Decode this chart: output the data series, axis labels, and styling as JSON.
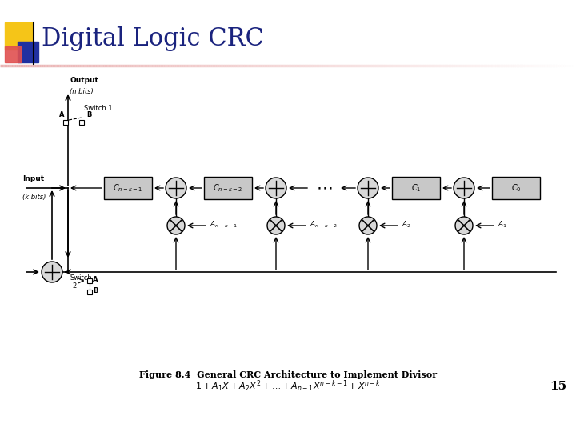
{
  "title": "Digital Logic CRC",
  "title_color": "#1a237e",
  "title_fontsize": 22,
  "bg_color": "#ffffff",
  "figure_caption_line1": "Figure 8.4  General CRC Architecture to Implement Divisor",
  "slide_number": "15",
  "logo_colors": {
    "yellow": "#f5c518",
    "red": "#e05050",
    "blue": "#2030a0"
  }
}
